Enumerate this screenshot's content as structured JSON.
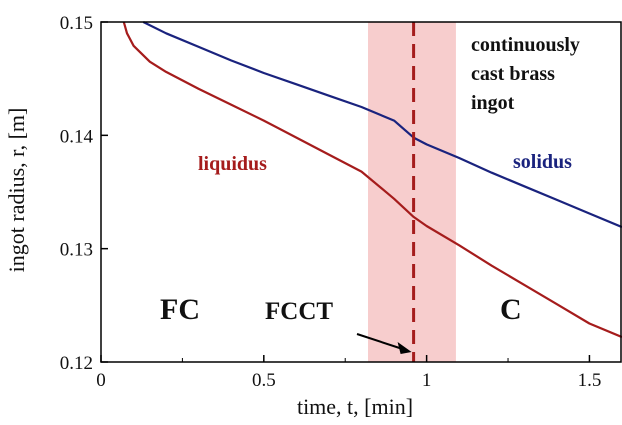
{
  "chart_data": {
    "type": "line",
    "xlabel": "time, t, [min]",
    "ylabel": "ingot radius, r, [m]",
    "xlim": [
      0,
      1.6
    ],
    "ylim": [
      0.12,
      0.15
    ],
    "x_ticks": [
      "0",
      "0.5",
      "1",
      "1.5"
    ],
    "y_ticks": [
      "0.12",
      "0.13",
      "0.14",
      "0.15"
    ],
    "series": [
      {
        "name": "liquidus",
        "color": "#a51c1c",
        "x": [
          0.07,
          0.08,
          0.1,
          0.15,
          0.2,
          0.3,
          0.4,
          0.5,
          0.6,
          0.7,
          0.8,
          0.9,
          0.96,
          1.0,
          1.1,
          1.2,
          1.3,
          1.4,
          1.5,
          1.6
        ],
        "y": [
          0.15,
          0.149,
          0.1479,
          0.1465,
          0.1456,
          0.1441,
          0.1427,
          0.1413,
          0.1398,
          0.1383,
          0.1368,
          0.1344,
          0.1328,
          0.132,
          0.1303,
          0.1285,
          0.1268,
          0.1251,
          0.1234,
          0.1222
        ]
      },
      {
        "name": "solidus",
        "color": "#1a237e",
        "x": [
          0.13,
          0.2,
          0.3,
          0.4,
          0.5,
          0.6,
          0.7,
          0.8,
          0.9,
          0.96,
          1.0,
          1.1,
          1.2,
          1.3,
          1.4,
          1.5,
          1.6
        ],
        "y": [
          0.15,
          0.149,
          0.1478,
          0.1466,
          0.1455,
          0.1445,
          0.1435,
          0.1425,
          0.1413,
          0.1398,
          0.1392,
          0.138,
          0.1367,
          0.1355,
          0.1343,
          0.1331,
          0.1319
        ]
      }
    ],
    "shaded_band": {
      "x_range": [
        0.82,
        1.09
      ],
      "color": "#f7cdcd"
    },
    "vertical_line": {
      "x": 0.96,
      "color": "#a51c1c",
      "style": "dashed"
    },
    "annotations": {
      "title_lines": [
        "continuously",
        "cast brass",
        "ingot"
      ],
      "liquidus_label": "liquidus",
      "solidus_label": "solidus",
      "fc_label": "FC",
      "fcct_label": "FCCT",
      "c_label": "C"
    }
  }
}
